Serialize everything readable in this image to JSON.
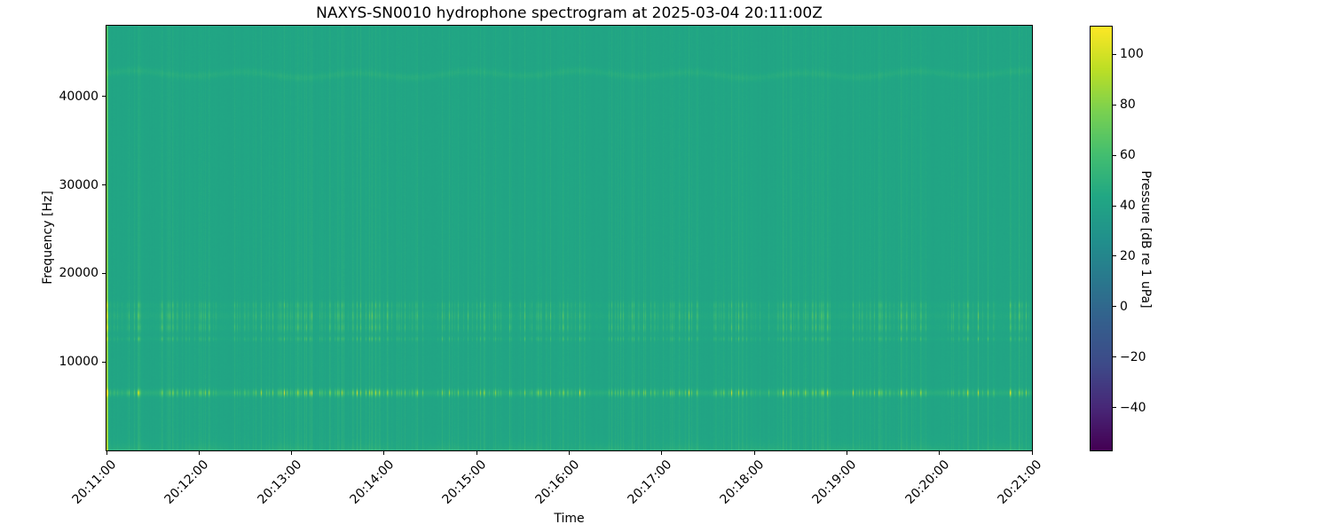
{
  "figure": {
    "background_color": "#ffffff"
  },
  "chart_data": {
    "type": "heatmap",
    "subtype": "spectrogram",
    "title": "NAXYS-SN0010 hydrophone spectrogram at 2025-03-04 20:11:00Z",
    "xlabel": "Time",
    "ylabel": "Frequency [Hz]",
    "x_ticks": [
      "20:11:00",
      "20:12:00",
      "20:13:00",
      "20:14:00",
      "20:15:00",
      "20:16:00",
      "20:17:00",
      "20:18:00",
      "20:19:00",
      "20:20:00",
      "20:21:00"
    ],
    "x_range": {
      "start": "20:11:00",
      "end": "20:21:00",
      "duration_seconds": 600
    },
    "y_ticks": [
      10000,
      20000,
      30000,
      40000
    ],
    "ylim": [
      0,
      48000
    ],
    "grid": false,
    "legend": "none",
    "colormap": "viridis",
    "colormap_stops": [
      "#440154",
      "#482878",
      "#3e4a89",
      "#355f8d",
      "#2a788e",
      "#21918c",
      "#22a884",
      "#44bf70",
      "#7ad151",
      "#bddf26",
      "#fde725"
    ],
    "color_scale": {
      "label": "Pressure [dB re 1 uPa]",
      "ticks": [
        100,
        80,
        60,
        40,
        20,
        0,
        -20,
        -40
      ],
      "vmin": -57,
      "vmax": 111
    },
    "background_color_observed": "#22a584",
    "features": {
      "background_db": 42,
      "pixel_noise_db": 0.7,
      "column_noise_db": 0.8,
      "striation_delta_db": 8,
      "description": "mostly uniform mid-green field (~42 dB) with dense clusters of faint broadband vertical striations (pings every few seconds); bright pulsed yellow tonal band near 6.5 kHz; weaker pulsed bands near 12.6-16.4 kHz; faint continuous wavy line near 42.5 kHz; slightly elevated level below ~1 kHz; bright broadband transient at the very start (20:11:00)",
      "tonal_bands": [
        {
          "freq_hz": 6500,
          "sigma_hz": 260,
          "pulse_delta_db": 54,
          "continuous_delta_db": 6
        },
        {
          "freq_hz": 12600,
          "sigma_hz": 170,
          "pulse_delta_db": 20,
          "continuous_delta_db": 2
        },
        {
          "freq_hz": 13900,
          "sigma_hz": 320,
          "pulse_delta_db": 22,
          "continuous_delta_db": 2
        },
        {
          "freq_hz": 15200,
          "sigma_hz": 430,
          "pulse_delta_db": 24,
          "continuous_delta_db": 3
        },
        {
          "freq_hz": 16400,
          "sigma_hz": 280,
          "pulse_delta_db": 18,
          "continuous_delta_db": 2
        },
        {
          "freq_hz": 42500,
          "sigma_hz": 300,
          "pulse_delta_db": 2,
          "continuous_delta_db": 4,
          "wobble_hz": 260
        }
      ],
      "low_band": {
        "cutoff_hz": 650,
        "delta_db": 7
      },
      "startup_transient_db": 44
    },
    "render_seed": 20110304
  }
}
